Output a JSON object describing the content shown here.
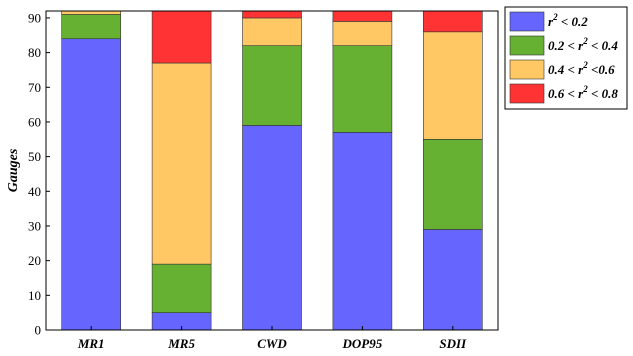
{
  "chart_data": {
    "type": "bar",
    "stacked": true,
    "title": "",
    "xlabel": "",
    "ylabel": "Gauges",
    "ylim": [
      0,
      92
    ],
    "yticks": [
      0,
      10,
      20,
      30,
      40,
      50,
      60,
      70,
      80,
      90
    ],
    "grid": false,
    "legend_position": "top-right outside",
    "categories": [
      "MR1",
      "MR5",
      "CWD",
      "DOP95",
      "SDII"
    ],
    "series": [
      {
        "name": "r2 < 0.2",
        "label_parts": [
          "r",
          "2",
          " < 0.2"
        ],
        "color": "#6666ff",
        "values": [
          84,
          5,
          59,
          57,
          29
        ]
      },
      {
        "name": "0.2 < r2 < 0.4",
        "label_parts": [
          "0.2 < r",
          "2",
          " < 0.4"
        ],
        "color": "#66b032",
        "values": [
          7,
          14,
          23,
          25,
          26
        ]
      },
      {
        "name": "0.4 < r2 < 0.6",
        "label_parts": [
          "0.4 < r",
          "2",
          " <0.6"
        ],
        "color": "#ffc864",
        "values": [
          1,
          58,
          8,
          7,
          31
        ]
      },
      {
        "name": "0.6 < r2 < 0.8",
        "label_parts": [
          "0.6 < r",
          "2",
          " < 0.8"
        ],
        "color": "#ff3333",
        "values": [
          0,
          15,
          2,
          3,
          6
        ]
      }
    ]
  }
}
